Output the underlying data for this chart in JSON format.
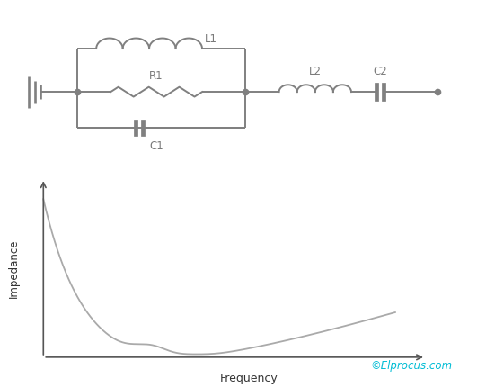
{
  "background_color": "#ffffff",
  "circuit_color": "#808080",
  "line_width": 1.4,
  "dot_color": "#808080",
  "label_color": "#7a7a7a",
  "label_fontsize": 8.5,
  "impedance_label": "Impedance",
  "frequency_label": "Frequency",
  "watermark": "©Elprocus.com",
  "watermark_color": "#00bcd4",
  "watermark_fontsize": 8.5,
  "curve_color": "#aaaaaa",
  "axis_color": "#555555",
  "xlim": [
    0,
    10
  ],
  "ylim": [
    0,
    10
  ]
}
